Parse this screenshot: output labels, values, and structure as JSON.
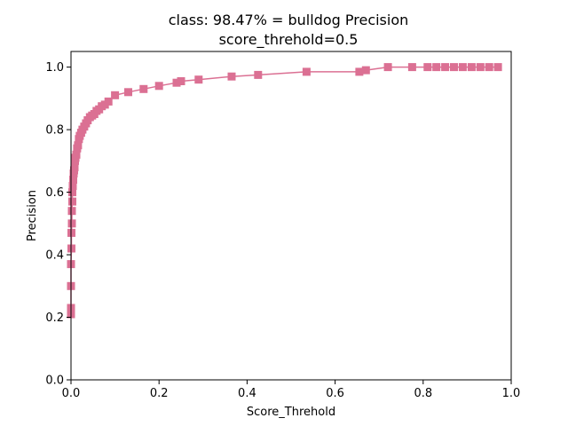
{
  "chart_data": {
    "type": "line",
    "title": "class: 98.47% = bulldog Precision",
    "subtitle": "score_threhold=0.5",
    "xlabel": "Score_Threhold",
    "ylabel": "Precision",
    "xlim": [
      0,
      1.0
    ],
    "ylim": [
      0,
      1.05
    ],
    "x_ticks": [
      "0.0",
      "0.2",
      "0.4",
      "0.6",
      "0.8",
      "1.0"
    ],
    "y_ticks": [
      "0.0",
      "0.2",
      "0.4",
      "0.6",
      "0.8",
      "1.0"
    ],
    "grid": false,
    "series": [
      {
        "color": "#db7093",
        "marker": "square",
        "x": [
          0.0,
          0.0,
          0.0,
          0.0,
          0.001,
          0.001,
          0.002,
          0.002,
          0.003,
          0.003,
          0.004,
          0.005,
          0.006,
          0.007,
          0.008,
          0.009,
          0.01,
          0.012,
          0.014,
          0.016,
          0.018,
          0.02,
          0.023,
          0.026,
          0.03,
          0.034,
          0.038,
          0.043,
          0.048,
          0.053,
          0.058,
          0.064,
          0.07,
          0.077,
          0.085,
          0.1,
          0.13,
          0.165,
          0.2,
          0.24,
          0.25,
          0.29,
          0.365,
          0.425,
          0.535,
          0.655,
          0.67,
          0.72,
          0.775,
          0.81,
          0.83,
          0.85,
          0.87,
          0.89,
          0.91,
          0.93,
          0.95,
          0.97
        ],
        "y": [
          0.21,
          0.23,
          0.3,
          0.37,
          0.42,
          0.47,
          0.5,
          0.54,
          0.57,
          0.6,
          0.62,
          0.64,
          0.66,
          0.67,
          0.68,
          0.7,
          0.71,
          0.72,
          0.74,
          0.75,
          0.77,
          0.78,
          0.79,
          0.8,
          0.81,
          0.82,
          0.83,
          0.84,
          0.845,
          0.85,
          0.86,
          0.865,
          0.875,
          0.88,
          0.89,
          0.91,
          0.92,
          0.93,
          0.94,
          0.95,
          0.955,
          0.96,
          0.97,
          0.975,
          0.985,
          0.985,
          0.99,
          1.0,
          1.0,
          1.0,
          1.0,
          1.0,
          1.0,
          1.0,
          1.0,
          1.0,
          1.0,
          1.0
        ]
      }
    ]
  }
}
